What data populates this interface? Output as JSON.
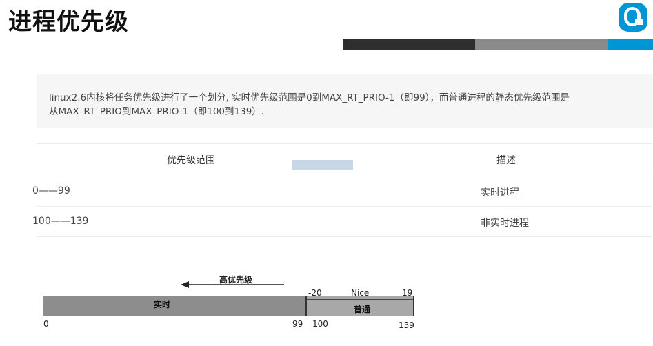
{
  "slide": {
    "title": "进程优先级"
  },
  "note": {
    "line1": "linux2.6内核将任务优先级进行了一个划分, 实时优先级范围是0到MAX_RT_PRIO-1（即99），而普通进程的静态优先级范围是",
    "line2": "从MAX_RT_PRIO到MAX_PRIO-1（即100到139）."
  },
  "table": {
    "headers": [
      "优先级范围",
      "描述"
    ],
    "rows": [
      [
        "0——99",
        "实时进程"
      ],
      [
        "100——139",
        "非实时进程"
      ]
    ]
  },
  "diagram": {
    "arrow_label": "高优先级",
    "realtime_label": "实时",
    "normal_label": "普通",
    "nice_label": "Nice",
    "nice_min": "-20",
    "nice_max": "19",
    "tick_0": "0",
    "tick_99": "99",
    "tick_100": "100",
    "tick_139": "139"
  },
  "colors": {
    "accent_blue": "#0096d6",
    "stripe_dark": "#2e2e2e",
    "stripe_mid": "#8a8a8a"
  }
}
